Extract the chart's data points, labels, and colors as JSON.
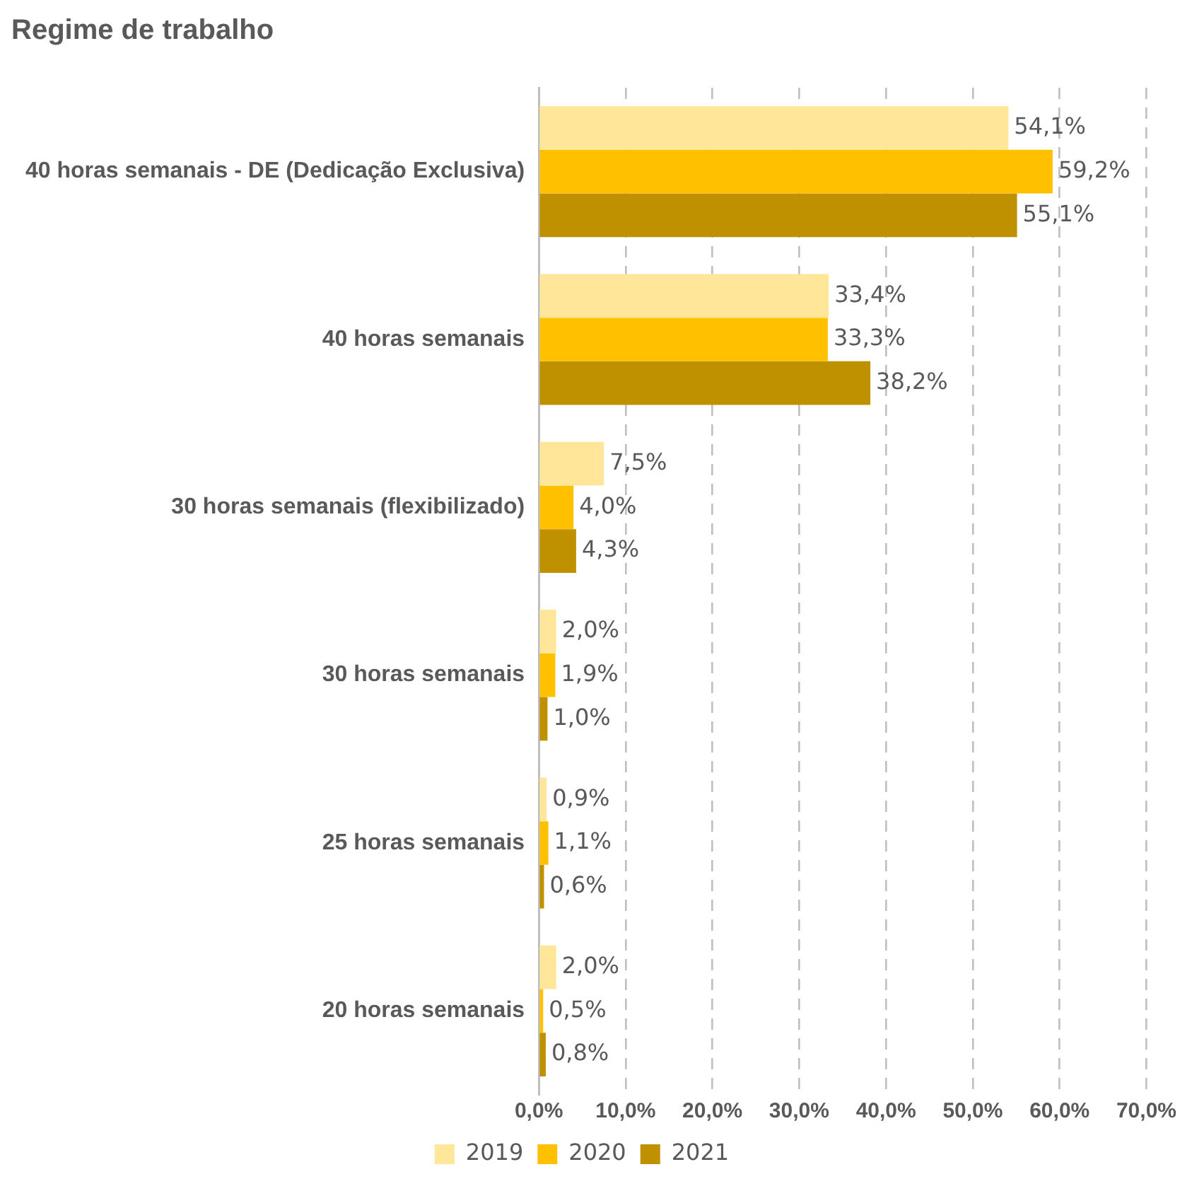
{
  "chart_data": {
    "type": "bar",
    "orientation": "horizontal",
    "title": "Regime de trabalho",
    "categories": [
      "40 horas semanais - DE (Dedicação Exclusiva)",
      "40 horas semanais",
      "30 horas semanais (flexibilizado)",
      "30 horas semanais",
      "25 horas semanais",
      "20 horas semanais"
    ],
    "series": [
      {
        "name": "2019",
        "color": "#ffe699",
        "values": [
          54.1,
          33.4,
          7.5,
          2.0,
          0.9,
          2.0
        ],
        "value_labels": [
          "54,1%",
          "33,4%",
          "7,5%",
          "2,0%",
          "0,9%",
          "2,0%"
        ]
      },
      {
        "name": "2020",
        "color": "#ffc000",
        "values": [
          59.2,
          33.3,
          4.0,
          1.9,
          1.1,
          0.5
        ],
        "value_labels": [
          "59,2%",
          "33,3%",
          "4,0%",
          "1,9%",
          "1,1%",
          "0,5%"
        ]
      },
      {
        "name": "2021",
        "color": "#bf9000",
        "values": [
          55.1,
          38.2,
          4.3,
          1.0,
          0.6,
          0.8
        ],
        "value_labels": [
          "55,1%",
          "38,2%",
          "4,3%",
          "1,0%",
          "0,6%",
          "0,8%"
        ]
      }
    ],
    "xlim": [
      0,
      70
    ],
    "xticks": [
      {
        "value": 0,
        "label": "0,0%"
      },
      {
        "value": 10,
        "label": "10,0%"
      },
      {
        "value": 20,
        "label": "20,0%"
      },
      {
        "value": 30,
        "label": "30,0%"
      },
      {
        "value": 40,
        "label": "40,0%"
      },
      {
        "value": 50,
        "label": "50,0%"
      },
      {
        "value": 60,
        "label": "60,0%"
      },
      {
        "value": 70,
        "label": "70,0%"
      }
    ],
    "grid": "x",
    "legend": "bottom"
  }
}
